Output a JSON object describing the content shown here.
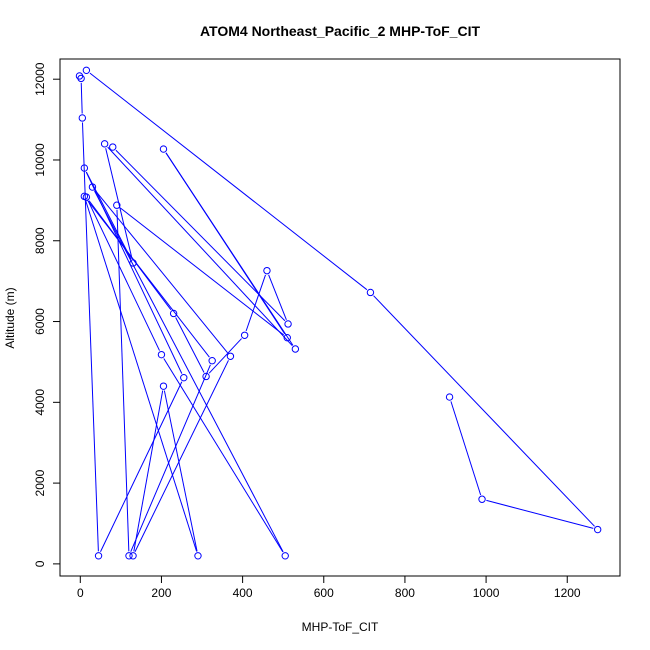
{
  "chart_data": {
    "type": "line",
    "title": "ATOM4 Northeast_Pacific_2 MHP-ToF_CIT",
    "xlabel": "MHP-ToF_CIT",
    "ylabel": "Altitude (m)",
    "xlim": [
      -50,
      1330
    ],
    "ylim": [
      -300,
      12500
    ],
    "xticks": [
      0,
      200,
      400,
      600,
      800,
      1000,
      1200
    ],
    "yticks": [
      0,
      2000,
      4000,
      6000,
      8000,
      10000,
      12000
    ],
    "grid": false,
    "legend": "none",
    "color": "#0000ff",
    "points": [
      {
        "x": 910,
        "y": 4130
      },
      {
        "x": 990,
        "y": 1600
      },
      {
        "x": 1275,
        "y": 850
      },
      {
        "x": 715,
        "y": 6720
      },
      {
        "x": 15,
        "y": 12220
      },
      {
        "x": -2,
        "y": 12080
      },
      {
        "x": 2,
        "y": 12020
      },
      {
        "x": 5,
        "y": 11040
      },
      {
        "x": 45,
        "y": 200
      },
      {
        "x": 255,
        "y": 4610
      },
      {
        "x": 10,
        "y": 9800
      },
      {
        "x": 130,
        "y": 7450
      },
      {
        "x": 60,
        "y": 10400
      },
      {
        "x": 530,
        "y": 5320
      },
      {
        "x": 205,
        "y": 10270
      },
      {
        "x": 510,
        "y": 5600
      },
      {
        "x": 90,
        "y": 8880
      },
      {
        "x": 120,
        "y": 200
      },
      {
        "x": 325,
        "y": 5030
      },
      {
        "x": 10,
        "y": 9100
      },
      {
        "x": 290,
        "y": 200
      },
      {
        "x": 205,
        "y": 4400
      },
      {
        "x": 130,
        "y": 200
      },
      {
        "x": 370,
        "y": 5140
      },
      {
        "x": 30,
        "y": 9330
      },
      {
        "x": 505,
        "y": 200
      },
      {
        "x": 200,
        "y": 5180
      },
      {
        "x": 15,
        "y": 9080
      },
      {
        "x": 230,
        "y": 6200
      },
      {
        "x": 310,
        "y": 4640
      },
      {
        "x": 405,
        "y": 5660
      },
      {
        "x": 460,
        "y": 7260
      },
      {
        "x": 512,
        "y": 5940
      },
      {
        "x": 80,
        "y": 10320
      }
    ]
  }
}
